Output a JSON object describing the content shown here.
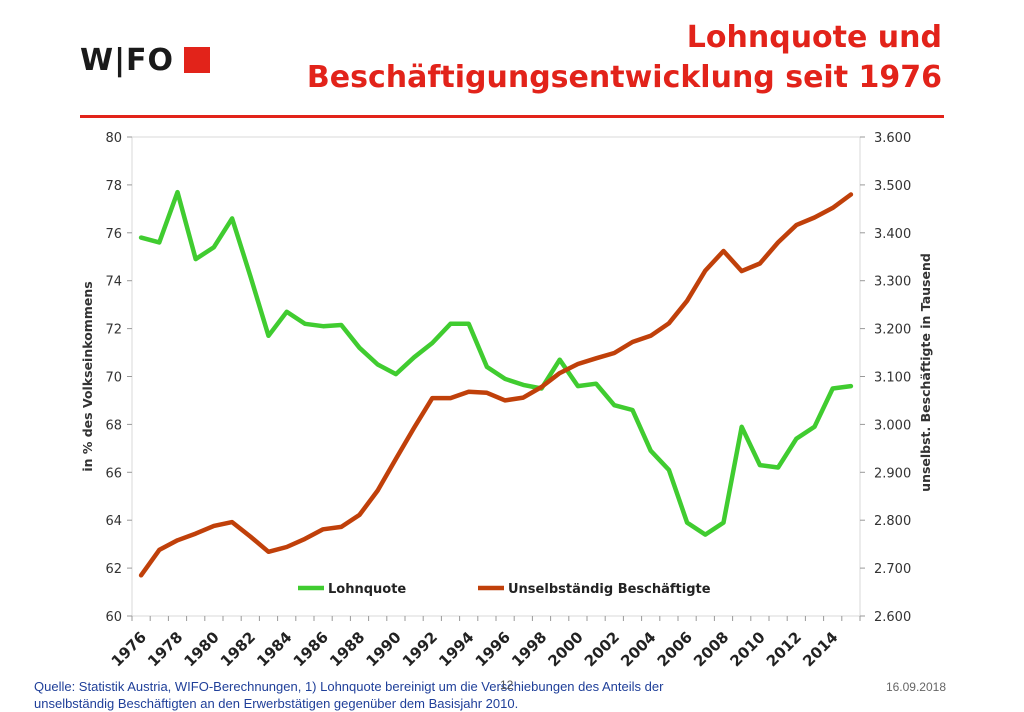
{
  "logo": {
    "text": "W|FO",
    "square_color": "#e2231a"
  },
  "title": {
    "line1": "Lohnquote und",
    "line2": "Beschäftigungsentwicklung seit 1976"
  },
  "footer": {
    "source_line1": "Quelle: Statistik Austria, WIFO-Berechnungen, 1) Lohnquote bereinigt um die Verschiebungen des Anteils der",
    "source_line2": "unselbständig Beschäftigten an den Erwerbstätigen gegenüber dem Basisjahr 2010.",
    "page_number": "12",
    "date": "16.09.2018"
  },
  "colors": {
    "accent": "#e2231a",
    "lohnquote": "#40cc30",
    "beschaeftigte": "#c0400a",
    "grid": "#d9d9d9"
  },
  "chart_data": {
    "type": "line",
    "x": [
      1976,
      1977,
      1978,
      1979,
      1980,
      1981,
      1982,
      1983,
      1984,
      1985,
      1986,
      1987,
      1988,
      1989,
      1990,
      1991,
      1992,
      1993,
      1994,
      1995,
      1996,
      1997,
      1998,
      1999,
      2000,
      2001,
      2002,
      2003,
      2004,
      2005,
      2006,
      2007,
      2008,
      2009,
      2010,
      2011,
      2012,
      2013,
      2014,
      2015
    ],
    "x_tick_labels": [
      "1976",
      "1978",
      "1980",
      "1982",
      "1984",
      "1986",
      "1988",
      "1990",
      "1992",
      "1994",
      "1996",
      "1998",
      "2000",
      "2002",
      "2004",
      "2006",
      "2008",
      "2010",
      "2012",
      "2014"
    ],
    "y_left": {
      "label": "in % des Volkseinkommens",
      "ylim": [
        60,
        80
      ],
      "ticks": [
        "60",
        "62",
        "64",
        "66",
        "68",
        "70",
        "72",
        "74",
        "76",
        "78",
        "80"
      ]
    },
    "y_right": {
      "label": "unselbst. Beschäftigte in Tausend",
      "ylim": [
        2600,
        3600
      ],
      "ticks": [
        "2.600",
        "2.700",
        "2.800",
        "2.900",
        "3.000",
        "3.100",
        "3.200",
        "3.300",
        "3.400",
        "3.500",
        "3.600"
      ]
    },
    "series": [
      {
        "name": "Lohnquote",
        "axis": "left",
        "color": "#40cc30",
        "values": [
          75.8,
          75.6,
          77.7,
          74.9,
          75.4,
          76.6,
          74.2,
          71.7,
          72.7,
          72.2,
          72.1,
          72.15,
          71.2,
          70.5,
          70.1,
          70.8,
          71.4,
          72.2,
          72.2,
          70.4,
          69.9,
          69.65,
          69.5,
          70.7,
          69.6,
          69.7,
          68.8,
          68.6,
          66.9,
          66.1,
          63.9,
          63.4,
          63.9,
          67.9,
          66.3,
          66.2,
          67.4,
          67.9,
          69.5,
          69.6
        ]
      },
      {
        "name": "Unselbständig Beschäftigte",
        "axis": "right",
        "color": "#c0400a",
        "values": [
          2685,
          2738,
          2758,
          2772,
          2788,
          2796,
          2766,
          2734,
          2744,
          2761,
          2781,
          2786,
          2811,
          2862,
          2928,
          2993,
          3055,
          3055,
          3068,
          3066,
          3050,
          3056,
          3078,
          3107,
          3126,
          3138,
          3149,
          3172,
          3185,
          3211,
          3258,
          3321,
          3362,
          3320,
          3336,
          3380,
          3416,
          3432,
          3452,
          3480
        ]
      }
    ],
    "legend_placement": "bottom-inside",
    "grid": false
  }
}
